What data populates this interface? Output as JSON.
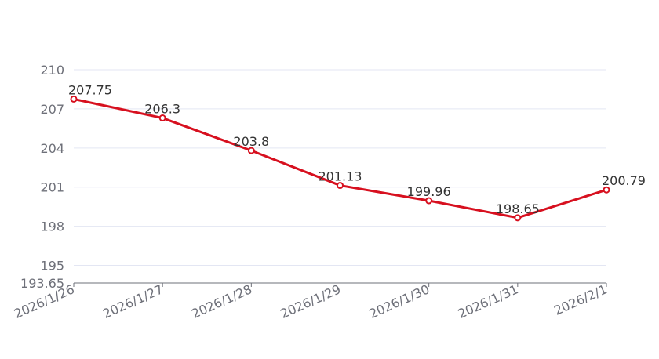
{
  "colors": {
    "series": "#d7101f"
  },
  "chart_data": {
    "type": "line",
    "title": "",
    "xlabel": "",
    "ylabel": "",
    "categories": [
      "2026/1/26",
      "2026/1/27",
      "2026/1/28",
      "2026/1/29",
      "2026/1/30",
      "2026/1/31",
      "2026/2/1"
    ],
    "series": [
      {
        "values": [
          207.75,
          206.3,
          203.8,
          201.13,
          199.96,
          198.65,
          200.79
        ]
      }
    ],
    "ylim": [
      193.65,
      210
    ],
    "yticks": [
      "193.65",
      "195",
      "198",
      "201",
      "204",
      "207",
      "210"
    ],
    "grid": true,
    "legend": "none"
  }
}
